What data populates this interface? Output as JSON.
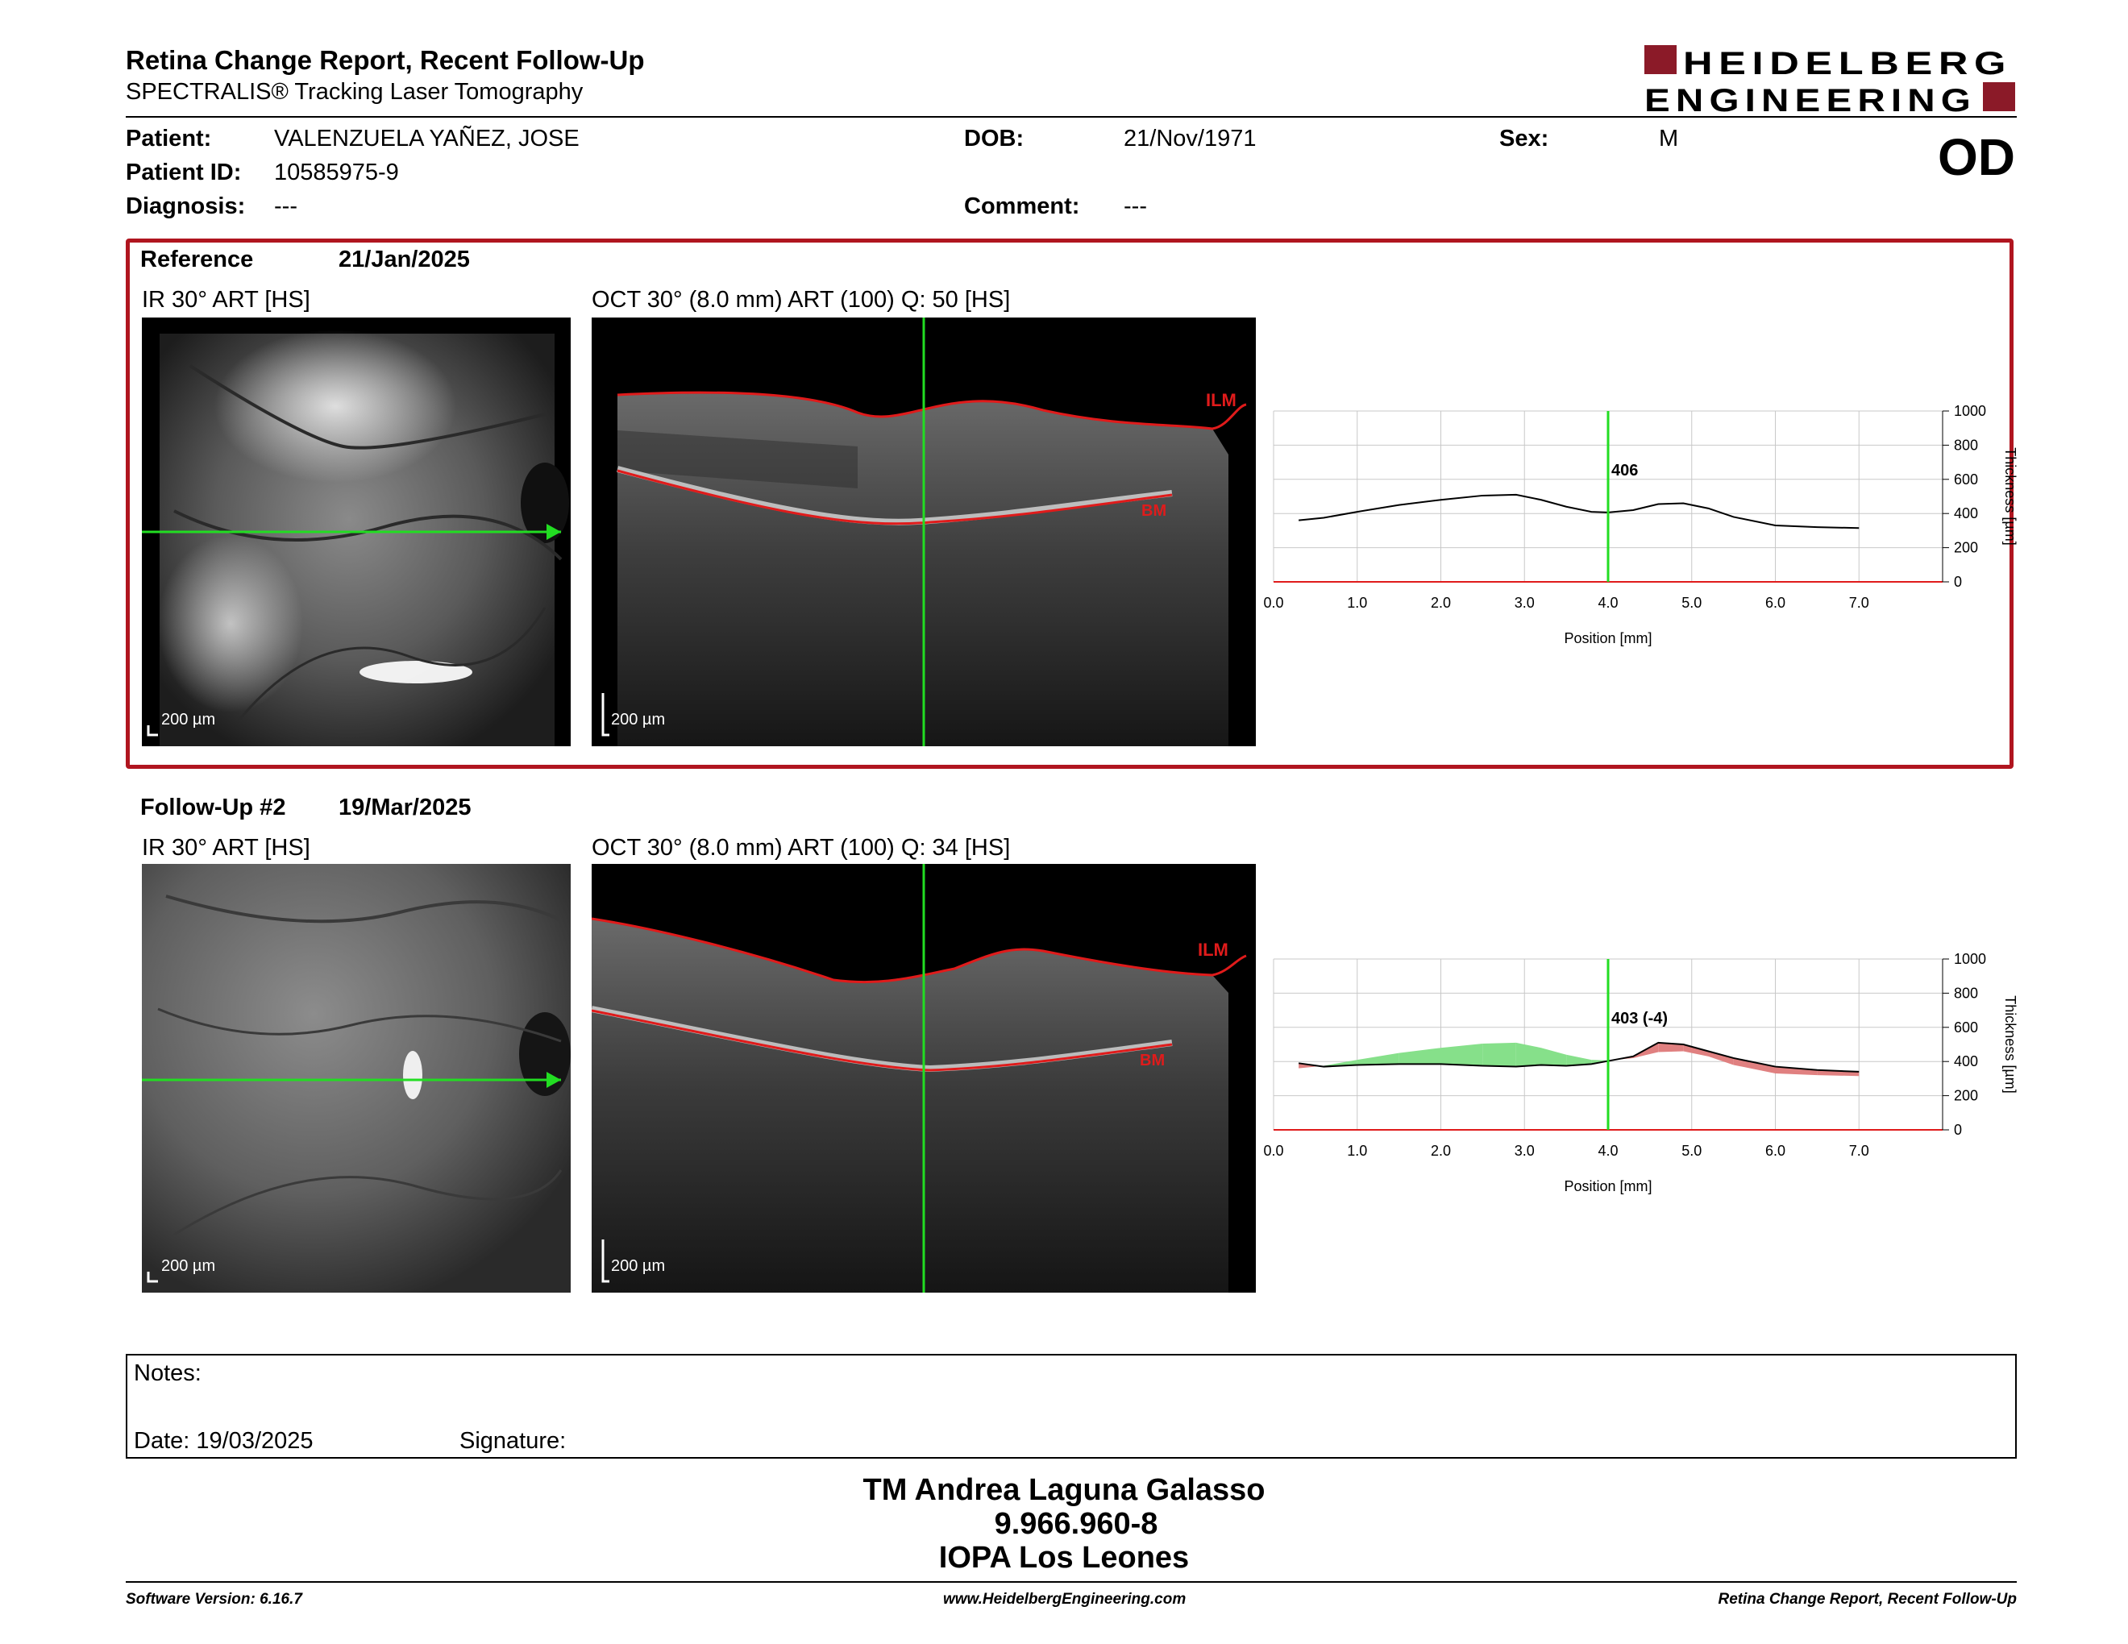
{
  "header": {
    "title": "Retina Change Report, Recent Follow-Up",
    "subtitle": "SPECTRALIS® Tracking Laser Tomography",
    "logo_line1": "HEIDELBERG",
    "logo_line2": "ENGINEERING",
    "brand_color": "#8b1a28"
  },
  "patient": {
    "patient_label": "Patient:",
    "patient_value": "VALENZUELA YAÑEZ, JOSE",
    "id_label": "Patient ID:",
    "id_value": "10585975-9",
    "diag_label": "Diagnosis:",
    "diag_value": "---",
    "dob_label": "DOB:",
    "dob_value": "21/Nov/1971",
    "comment_label": "Comment:",
    "comment_value": "---",
    "sex_label": "Sex:",
    "sex_value": "M",
    "eye": "OD"
  },
  "reference": {
    "label": "Reference",
    "date": "21/Jan/2025",
    "ir_caption": "IR 30° ART [HS]",
    "oct_caption": "OCT 30° (8.0 mm) ART (100) Q: 50 [HS]",
    "scale": "200 µm",
    "ilm": "ILM",
    "bm": "BM",
    "frame_color": "#b0151f"
  },
  "followup": {
    "label": "Follow-Up #2",
    "date": "19/Mar/2025",
    "ir_caption": "IR 30° ART [HS]",
    "oct_caption": "OCT 30° (8.0 mm) ART (100) Q: 34 [HS]",
    "scale": "200 µm",
    "ilm": "ILM",
    "bm": "BM"
  },
  "chart_data": [
    {
      "type": "line",
      "xlabel": "Position [mm]",
      "ylabel": "Thickness [µm]",
      "xlim": [
        0,
        8
      ],
      "ylim": [
        0,
        1000
      ],
      "xticks": [
        "0.0",
        "1.0",
        "2.0",
        "3.0",
        "4.0",
        "5.0",
        "6.0",
        "7.0"
      ],
      "yticks": [
        "0",
        "200",
        "400",
        "600",
        "800",
        "1000"
      ],
      "grid": true,
      "cursor_x": 4.0,
      "cursor_label": "406",
      "series": [
        {
          "x": [
            0.3,
            0.6,
            1.0,
            1.5,
            2.0,
            2.5,
            2.9,
            3.2,
            3.5,
            3.8,
            4.0,
            4.3,
            4.6,
            4.9,
            5.2,
            5.5,
            6.0,
            6.5,
            7.0
          ],
          "values": [
            360,
            375,
            410,
            450,
            480,
            505,
            510,
            480,
            440,
            410,
            406,
            420,
            455,
            460,
            430,
            380,
            330,
            320,
            315
          ]
        }
      ]
    },
    {
      "type": "area",
      "xlabel": "Position [mm]",
      "ylabel": "Thickness [µm]",
      "xlim": [
        0,
        8
      ],
      "ylim": [
        0,
        1000
      ],
      "xticks": [
        "0.0",
        "1.0",
        "2.0",
        "3.0",
        "4.0",
        "5.0",
        "6.0",
        "7.0"
      ],
      "yticks": [
        "0",
        "200",
        "400",
        "600",
        "800",
        "1000"
      ],
      "grid": true,
      "cursor_x": 4.0,
      "cursor_label": "403 (-4)",
      "colors": {
        "thinning": "#86e08a",
        "thickening": "#e08080"
      },
      "series": [
        {
          "x": [
            0.3,
            0.6,
            1.0,
            1.5,
            2.0,
            2.5,
            2.9,
            3.2,
            3.5,
            3.8,
            4.0,
            4.3,
            4.6,
            4.9,
            5.2,
            5.5,
            6.0,
            6.5,
            7.0
          ],
          "values": [
            360,
            375,
            410,
            450,
            480,
            505,
            510,
            480,
            440,
            410,
            406,
            420,
            455,
            460,
            430,
            380,
            330,
            320,
            315
          ]
        },
        {
          "x": [
            0.3,
            0.6,
            1.0,
            1.5,
            2.0,
            2.5,
            2.9,
            3.2,
            3.5,
            3.8,
            4.0,
            4.3,
            4.6,
            4.9,
            5.2,
            5.5,
            6.0,
            6.5,
            7.0
          ],
          "values": [
            390,
            370,
            380,
            385,
            385,
            375,
            370,
            380,
            375,
            385,
            403,
            430,
            510,
            500,
            460,
            420,
            370,
            350,
            340
          ]
        }
      ]
    }
  ],
  "notes": {
    "notes_label": "Notes:",
    "date_label": "Date: 19/03/2025",
    "signature_label": "Signature:"
  },
  "signature_block": {
    "name": "TM Andrea Laguna Galasso",
    "rut": "9.966.960-8",
    "institution": "IOPA Los Leones"
  },
  "footer": {
    "version": "Software Version: 6.16.7",
    "url": "www.HeidelbergEngineering.com",
    "report": "Retina Change Report, Recent Follow-Up"
  }
}
